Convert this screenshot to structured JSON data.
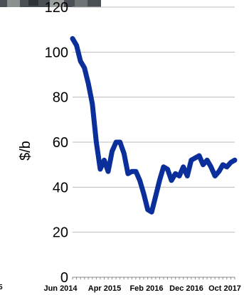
{
  "chart_data": {
    "type": "line",
    "title": "",
    "xlabel": "",
    "ylabel": "$/b",
    "ylim": [
      0,
      120
    ],
    "yticks": [
      0,
      20,
      40,
      60,
      80,
      100,
      120
    ],
    "x_tick_labels": [
      "Jun 2014",
      "Apr 2015",
      "Feb 2016",
      "Dec 2016",
      "Oct 2017"
    ],
    "grid": "horizontal",
    "legend": "none",
    "line_color": "#0b2f9a",
    "series": [
      {
        "x": [
          "2014-06",
          "2014-07",
          "2014-08",
          "2014-09",
          "2014-10",
          "2014-11",
          "2014-12",
          "2015-01",
          "2015-02",
          "2015-03",
          "2015-04",
          "2015-05",
          "2015-06",
          "2015-07",
          "2015-08",
          "2015-09",
          "2015-10",
          "2015-11",
          "2015-12",
          "2016-01",
          "2016-02",
          "2016-03",
          "2016-04",
          "2016-05",
          "2016-06",
          "2016-07",
          "2016-08",
          "2016-09",
          "2016-10",
          "2016-11",
          "2016-12",
          "2017-01",
          "2017-02",
          "2017-03",
          "2017-04",
          "2017-05",
          "2017-06",
          "2017-07",
          "2017-08",
          "2017-09",
          "2017-10",
          "2017-11"
        ],
        "values": [
          106,
          103,
          96,
          93,
          86,
          77,
          60,
          48,
          52,
          47,
          56,
          60,
          60,
          55,
          46,
          47,
          47,
          43,
          37,
          30,
          29,
          36,
          43,
          49,
          48,
          43,
          46,
          45,
          49,
          45,
          52,
          53,
          54,
          50,
          52,
          49,
          45,
          47,
          50,
          49,
          51,
          52
        ]
      }
    ]
  },
  "extra_text": {
    "left_edge_fragment": "5"
  }
}
